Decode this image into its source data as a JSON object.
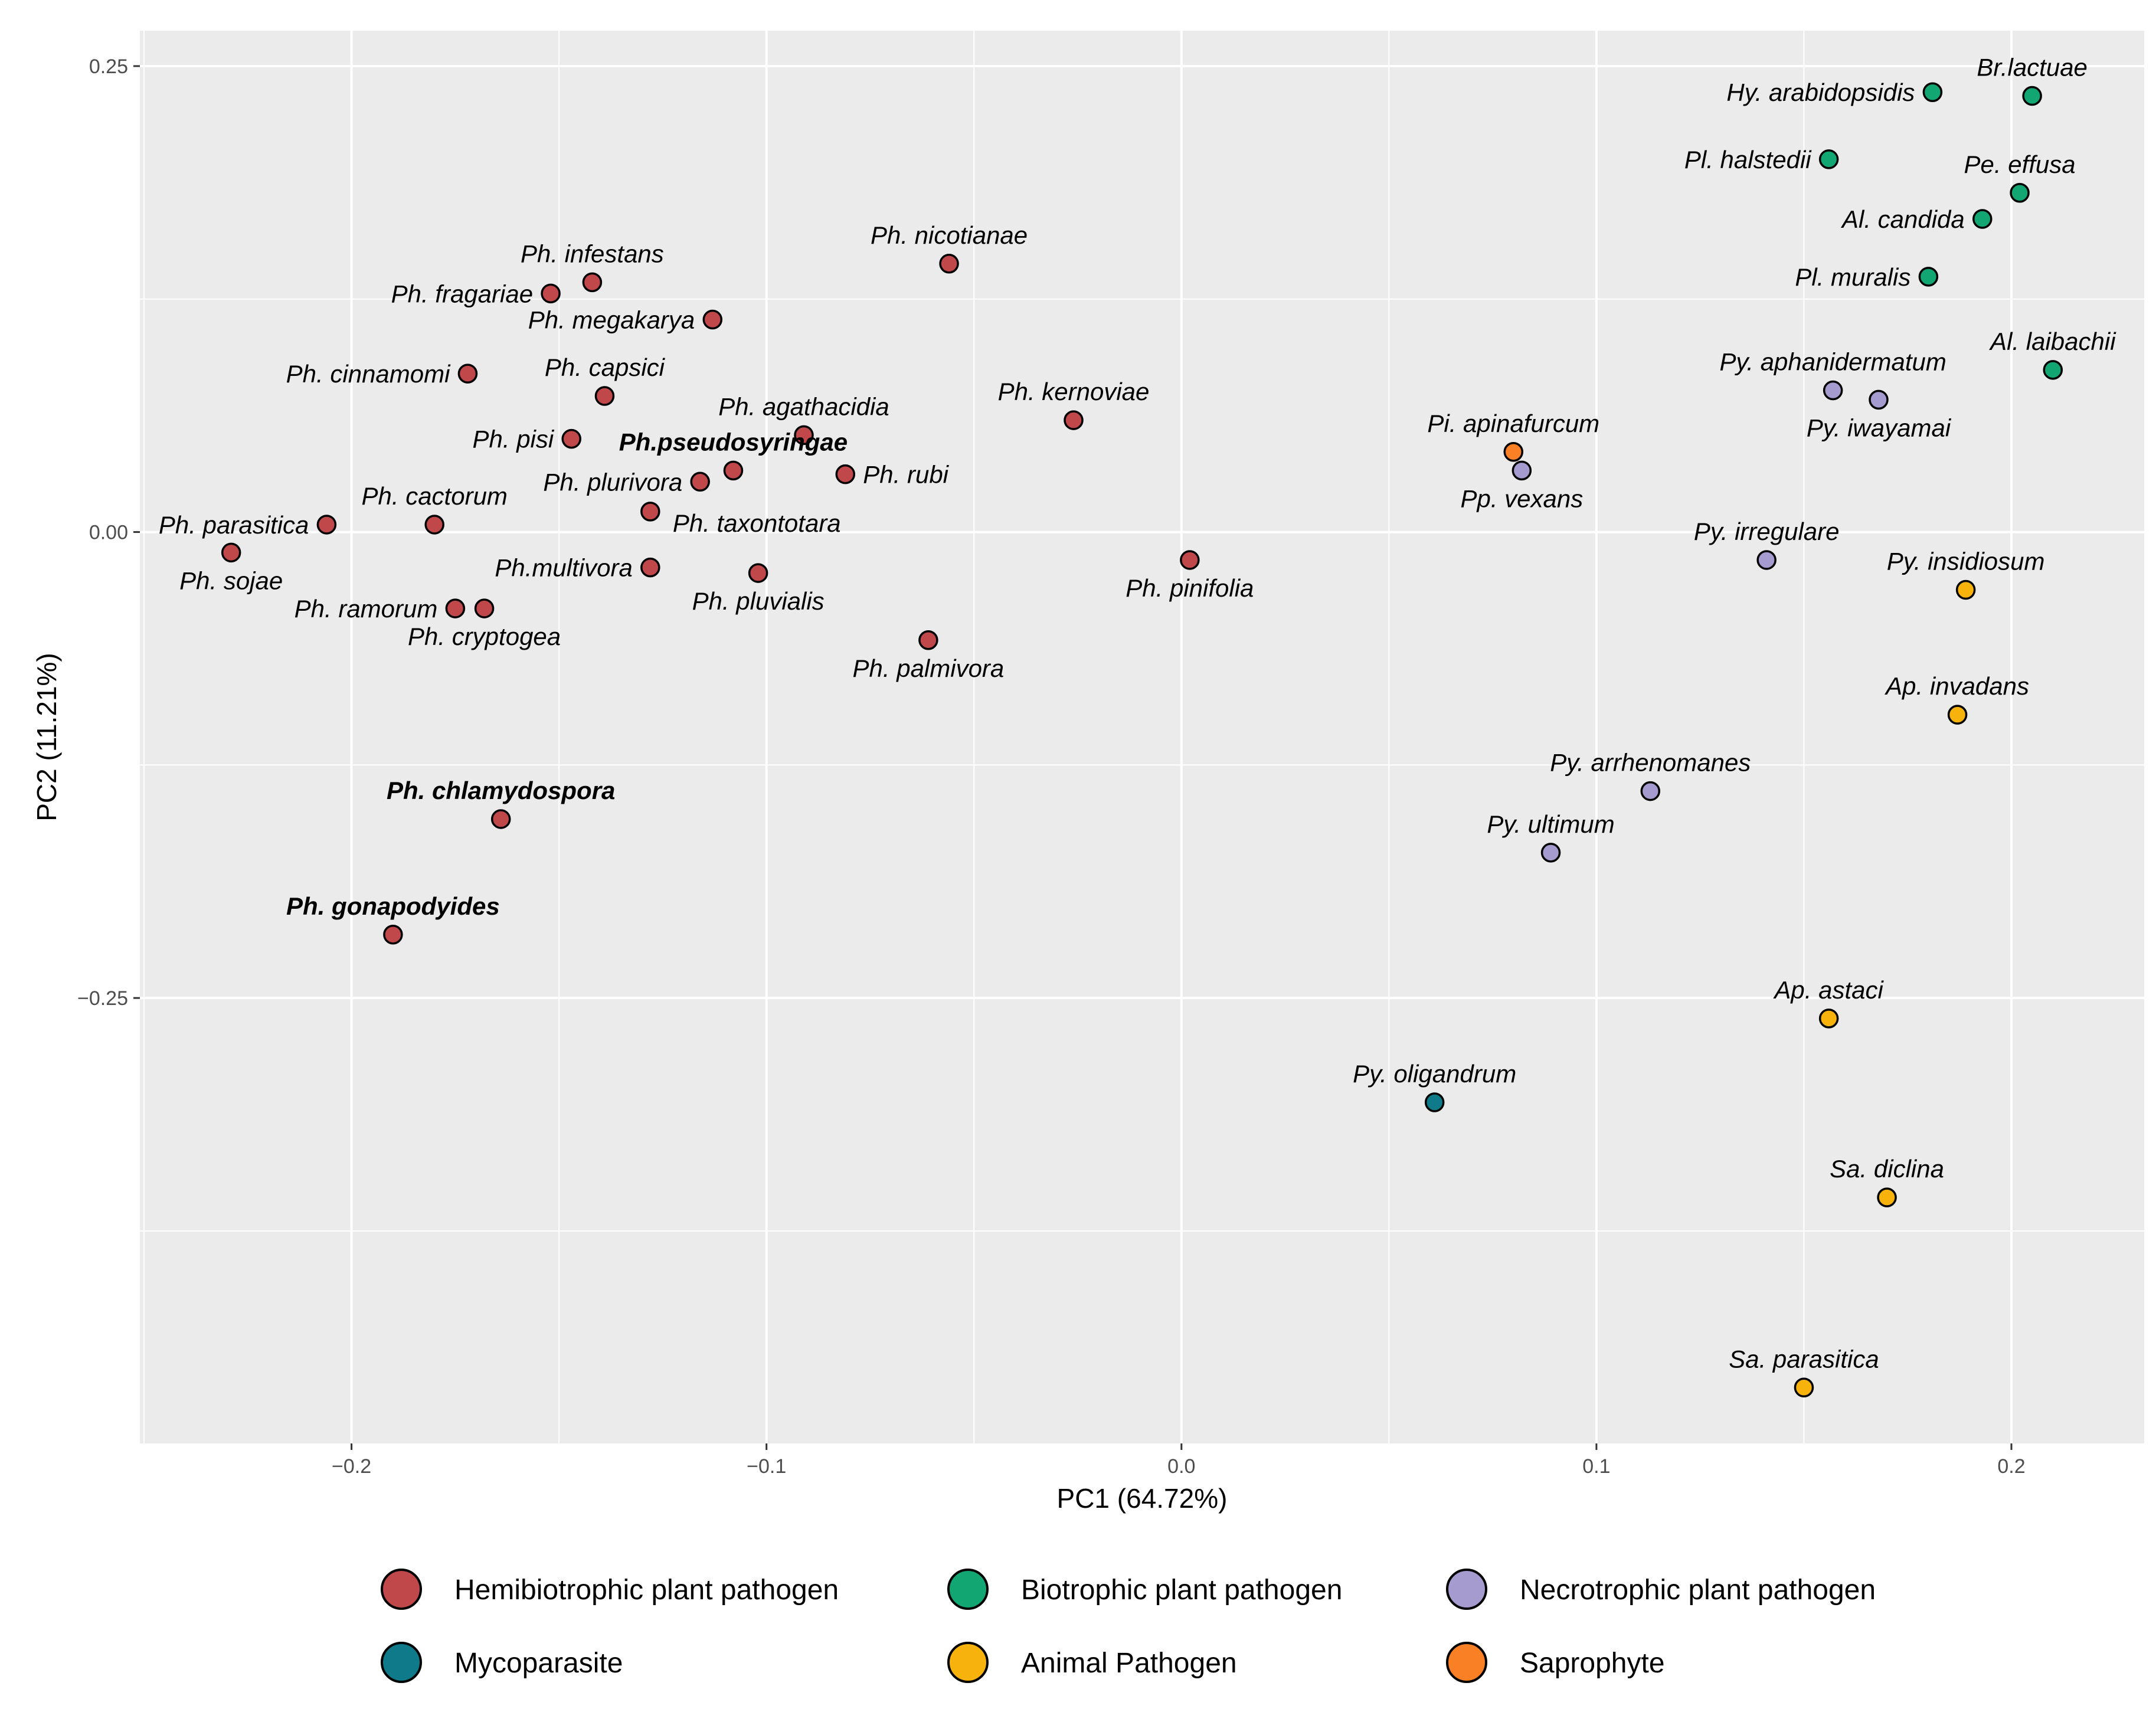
{
  "chart_data": {
    "type": "scatter",
    "xlabel": "PC1 (64.72%)",
    "ylabel": "PC2 (11.21%)",
    "xlim": [
      -0.251,
      0.232
    ],
    "ylim": [
      -0.489,
      0.269
    ],
    "x_ticks": [
      -0.2,
      -0.1,
      0.0,
      0.1,
      0.2
    ],
    "x_tick_labels": [
      "−0.2",
      "−0.1",
      "0.0",
      "0.1",
      "0.2"
    ],
    "y_ticks": [
      0.25,
      0.0,
      -0.25
    ],
    "y_tick_labels": [
      "0.25",
      "0.00",
      "−0.25"
    ],
    "grid": true,
    "legend_position": "bottom",
    "groups": [
      {
        "name": "Hemibiotrophic plant pathogen",
        "color": "#C0474A"
      },
      {
        "name": "Biotrophic plant pathogen",
        "color": "#12A672"
      },
      {
        "name": "Necrotrophic plant pathogen",
        "color": "#A69BCF"
      },
      {
        "name": "Mycoparasite",
        "color": "#0E7A8A"
      },
      {
        "name": "Animal Pathogen",
        "color": "#F7B30C"
      },
      {
        "name": "Saprophyte",
        "color": "#F98024"
      }
    ],
    "points": [
      {
        "label": "Ph. infestans",
        "x": -0.142,
        "y": 0.134,
        "group": 0,
        "anchor": "middle",
        "pos": "above",
        "bold": false
      },
      {
        "label": "Ph. fragariae",
        "x": -0.152,
        "y": 0.128,
        "group": 0,
        "anchor": "end",
        "pos": "left",
        "bold": false
      },
      {
        "label": "Ph. megakarya",
        "x": -0.113,
        "y": 0.114,
        "group": 0,
        "anchor": "end",
        "pos": "left",
        "bold": false
      },
      {
        "label": "Ph. nicotianae",
        "x": -0.056,
        "y": 0.144,
        "group": 0,
        "anchor": "middle",
        "pos": "above",
        "bold": false
      },
      {
        "label": "Ph. cinnamomi",
        "x": -0.172,
        "y": 0.085,
        "group": 0,
        "anchor": "end",
        "pos": "left",
        "bold": false
      },
      {
        "label": "Ph. capsici",
        "x": -0.139,
        "y": 0.073,
        "group": 0,
        "anchor": "middle",
        "pos": "above",
        "bold": false
      },
      {
        "label": "Ph. agathacidia",
        "x": -0.091,
        "y": 0.052,
        "group": 0,
        "anchor": "middle",
        "pos": "above",
        "bold": false
      },
      {
        "label": "Ph. kernoviae",
        "x": -0.026,
        "y": 0.06,
        "group": 0,
        "anchor": "middle",
        "pos": "above",
        "bold": false
      },
      {
        "label": "Ph. pisi",
        "x": -0.147,
        "y": 0.05,
        "group": 0,
        "anchor": "end",
        "pos": "left",
        "bold": false
      },
      {
        "label": "Ph.pseudosyringae",
        "x": -0.108,
        "y": 0.033,
        "group": 0,
        "anchor": "middle",
        "pos": "above",
        "bold": true
      },
      {
        "label": "Ph. plurivora",
        "x": -0.116,
        "y": 0.027,
        "group": 0,
        "anchor": "end",
        "pos": "left",
        "bold": false
      },
      {
        "label": "Ph. rubi",
        "x": -0.081,
        "y": 0.031,
        "group": 0,
        "anchor": "start",
        "pos": "right",
        "bold": false
      },
      {
        "label": "Ph. cactorum",
        "x": -0.18,
        "y": 0.004,
        "group": 0,
        "anchor": "middle",
        "pos": "above",
        "bold": false
      },
      {
        "label": "Ph. parasitica",
        "x": -0.206,
        "y": 0.004,
        "group": 0,
        "anchor": "end",
        "pos": "left",
        "bold": false
      },
      {
        "label": "Ph. taxontotara",
        "x": -0.128,
        "y": 0.011,
        "group": 0,
        "anchor": "start",
        "pos": "below-right",
        "bold": false
      },
      {
        "label": "Ph. sojae",
        "x": -0.229,
        "y": -0.011,
        "group": 0,
        "anchor": "middle",
        "pos": "below",
        "bold": false
      },
      {
        "label": "Ph.multivora",
        "x": -0.128,
        "y": -0.019,
        "group": 0,
        "anchor": "end",
        "pos": "left",
        "bold": false
      },
      {
        "label": "Ph. pluvialis",
        "x": -0.102,
        "y": -0.022,
        "group": 0,
        "anchor": "middle",
        "pos": "below",
        "bold": false
      },
      {
        "label": "Ph. pinifolia",
        "x": 0.002,
        "y": -0.015,
        "group": 0,
        "anchor": "middle",
        "pos": "below",
        "bold": false
      },
      {
        "label": "Ph. ramorum",
        "x": -0.175,
        "y": -0.041,
        "group": 0,
        "anchor": "end",
        "pos": "left",
        "bold": false
      },
      {
        "label": "Ph. cryptogea",
        "x": -0.168,
        "y": -0.041,
        "group": 0,
        "anchor": "middle",
        "pos": "below",
        "bold": false
      },
      {
        "label": "Ph. palmivora",
        "x": -0.061,
        "y": -0.058,
        "group": 0,
        "anchor": "middle",
        "pos": "below",
        "bold": false
      },
      {
        "label": "Ph. chlamydospora",
        "x": -0.164,
        "y": -0.154,
        "group": 0,
        "anchor": "middle",
        "pos": "above",
        "bold": true
      },
      {
        "label": "Ph. gonapodyides",
        "x": -0.19,
        "y": -0.216,
        "group": 0,
        "anchor": "middle",
        "pos": "above",
        "bold": true
      },
      {
        "label": "Hy. arabidopsidis",
        "x": 0.181,
        "y": 0.236,
        "group": 1,
        "anchor": "end",
        "pos": "left",
        "bold": false
      },
      {
        "label": "Br.lactuae",
        "x": 0.205,
        "y": 0.234,
        "group": 1,
        "anchor": "middle",
        "pos": "above",
        "bold": false
      },
      {
        "label": "Pl. halstedii",
        "x": 0.156,
        "y": 0.2,
        "group": 1,
        "anchor": "end",
        "pos": "left",
        "bold": false
      },
      {
        "label": "Pe. effusa",
        "x": 0.202,
        "y": 0.182,
        "group": 1,
        "anchor": "middle",
        "pos": "above",
        "bold": false
      },
      {
        "label": "Al. candida",
        "x": 0.193,
        "y": 0.168,
        "group": 1,
        "anchor": "end",
        "pos": "left",
        "bold": false
      },
      {
        "label": "Pl. muralis",
        "x": 0.18,
        "y": 0.137,
        "group": 1,
        "anchor": "end",
        "pos": "left",
        "bold": false
      },
      {
        "label": "Al. laibachii",
        "x": 0.21,
        "y": 0.087,
        "group": 1,
        "anchor": "middle",
        "pos": "above",
        "bold": false
      },
      {
        "label": "Py. aphanidermatum",
        "x": 0.157,
        "y": 0.076,
        "group": 2,
        "anchor": "middle",
        "pos": "above",
        "bold": false
      },
      {
        "label": "Py. iwayamai",
        "x": 0.168,
        "y": 0.071,
        "group": 2,
        "anchor": "middle",
        "pos": "below",
        "bold": false
      },
      {
        "label": "Pp. vexans",
        "x": 0.082,
        "y": 0.033,
        "group": 2,
        "anchor": "middle",
        "pos": "below",
        "bold": false
      },
      {
        "label": "Py. irregulare",
        "x": 0.141,
        "y": -0.015,
        "group": 2,
        "anchor": "middle",
        "pos": "above",
        "bold": false
      },
      {
        "label": "Py. arrhenomanes",
        "x": 0.113,
        "y": -0.139,
        "group": 2,
        "anchor": "middle",
        "pos": "above",
        "bold": false
      },
      {
        "label": "Py. ultimum",
        "x": 0.089,
        "y": -0.172,
        "group": 2,
        "anchor": "middle",
        "pos": "above",
        "bold": false
      },
      {
        "label": "Py. oligandrum",
        "x": 0.061,
        "y": -0.306,
        "group": 3,
        "anchor": "middle",
        "pos": "above",
        "bold": false
      },
      {
        "label": "Py. insidiosum",
        "x": 0.189,
        "y": -0.031,
        "group": 4,
        "anchor": "middle",
        "pos": "above",
        "bold": false
      },
      {
        "label": "Ap. invadans",
        "x": 0.187,
        "y": -0.098,
        "group": 4,
        "anchor": "middle",
        "pos": "above",
        "bold": false
      },
      {
        "label": "Ap. astaci",
        "x": 0.156,
        "y": -0.261,
        "group": 4,
        "anchor": "middle",
        "pos": "above",
        "bold": false
      },
      {
        "label": "Sa. diclina",
        "x": 0.17,
        "y": -0.357,
        "group": 4,
        "anchor": "middle",
        "pos": "above",
        "bold": false
      },
      {
        "label": "Sa. parasitica",
        "x": 0.15,
        "y": -0.459,
        "group": 4,
        "anchor": "middle",
        "pos": "above",
        "bold": false
      },
      {
        "label": "Pi. apinafurcum",
        "x": 0.08,
        "y": 0.043,
        "group": 5,
        "anchor": "middle",
        "pos": "above",
        "bold": false
      }
    ]
  }
}
